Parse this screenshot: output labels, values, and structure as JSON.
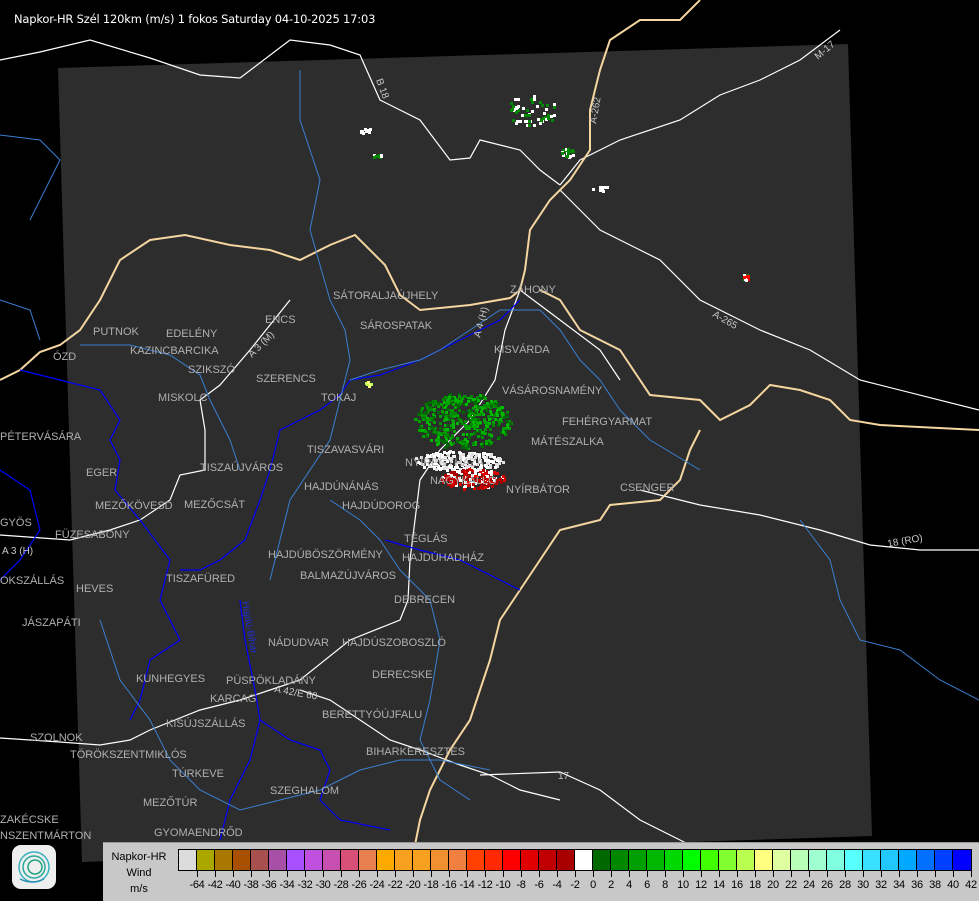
{
  "title": "Napkor-HR Szél 120km (m/s) 1 fokos Saturday 04-10-2025 17:03",
  "colors": {
    "background": "#000000",
    "radar_area": "#2d2d2d",
    "border": "#f5d5a0",
    "county_border": "#0000ff",
    "river": "#3a7fd0",
    "road": "#ffffff",
    "city_label": "#b0b0b0"
  },
  "cities": [
    "SÁTORALJAÚJHELY",
    "SÁROSPATAK",
    "ZÁHONY",
    "PUTNOK",
    "EDELÉNY",
    "KAZINCBARCIKA",
    "SZIKSZÓ",
    "ENCS",
    "SZERENCS",
    "TOKAJ",
    "KISVÁRDA",
    "VÁSÁROSNAMÉNY",
    "MISKOLC",
    "ÓZD",
    "PÉTERVÁSÁRA",
    "FEHÉRGYARMAT",
    "MÁTÉSZALKA",
    "TISZAVASVÁRI",
    "NYÍREGYHÁZA",
    "NAGYKÁLLÓ",
    "TISZAÚJVÁROS",
    "EGER",
    "HAJDÚNÁNÁS",
    "NYÍRBÁTOR",
    "CSENGER",
    "HAJDÚDOROG",
    "MEZŐKÖVESD",
    "MEZŐCSÁT",
    "GYÖS",
    "FÜZESABONY",
    "TÉGLÁS",
    "HAJDÚBÖSZÖRMÉNY",
    "HAJDÚHADHÁZ",
    "HEVES",
    "TISZAFÜRED",
    "BALMAZÚJVÁROS",
    "JÁSZAPÁTI",
    "DEBRECEN",
    "NÁDUDVAR",
    "HAJDÚSZOBOSZLÓ",
    "DERECSKE",
    "KUNHEGYES",
    "KARCAG",
    "PÜSPÖKLADÁNY",
    "BERETTYÓÚJFALU",
    "KISÚJSZÁLLÁS",
    "SZOLNOK",
    "TÖRÖKSZENTMIKLÓS",
    "BIHARKERESZTES",
    "TÚRKEVE",
    "SZEGHALOM",
    "MEZŐTÚR",
    "ZAKÉCSKE",
    "GYOMAENDRŐD",
    "NSZENTMÁRTON",
    "OKSZÁLLÁS"
  ],
  "roads": [
    "B 18",
    "A-262",
    "M-17",
    "A-265",
    "A 3 (M)",
    "A 4 (H)",
    "18 (RO)",
    "17",
    "A 42/E 60",
    "A 3 (H)",
    "Hajdú-Bihar"
  ],
  "legend": {
    "title_lines": [
      "Napkor-HR",
      "Wind",
      "m/s"
    ],
    "colors": [
      "#dcdcdc",
      "#aaa800",
      "#a87800",
      "#a85000",
      "#a85050",
      "#a850a8",
      "#a850ff",
      "#c050e0",
      "#c850b0",
      "#d85078",
      "#e88050",
      "#ffaa00",
      "#f8a020",
      "#f8a020",
      "#f09030",
      "#f08040",
      "#ff4000",
      "#ff2800",
      "#ff0000",
      "#e00000",
      "#c00000",
      "#a80000",
      "#ffffff",
      "#006800",
      "#008800",
      "#00a000",
      "#00b800",
      "#00d800",
      "#00ff00",
      "#40ff00",
      "#80ff30",
      "#b8ff50",
      "#ffff80",
      "#e0ffa0",
      "#b8ffb8",
      "#a0ffd0",
      "#80ffe0",
      "#58ffff",
      "#38e0ff",
      "#20c8ff",
      "#00a8ff",
      "#0070ff",
      "#0040ff",
      "#0000ff"
    ],
    "labels": [
      "-64",
      "-42",
      "-40",
      "-38",
      "-36",
      "-34",
      "-32",
      "-30",
      "-28",
      "-26",
      "-24",
      "-22",
      "-20",
      "-18",
      "-16",
      "-14",
      "-12",
      "-10",
      "-8",
      "-6",
      "-4",
      "-2",
      "0",
      "2",
      "4",
      "6",
      "8",
      "10",
      "12",
      "14",
      "16",
      "18",
      "20",
      "22",
      "24",
      "26",
      "28",
      "30",
      "32",
      "34",
      "36",
      "38",
      "40",
      "42"
    ]
  },
  "logo_icon": "napkor-swirl-logo"
}
